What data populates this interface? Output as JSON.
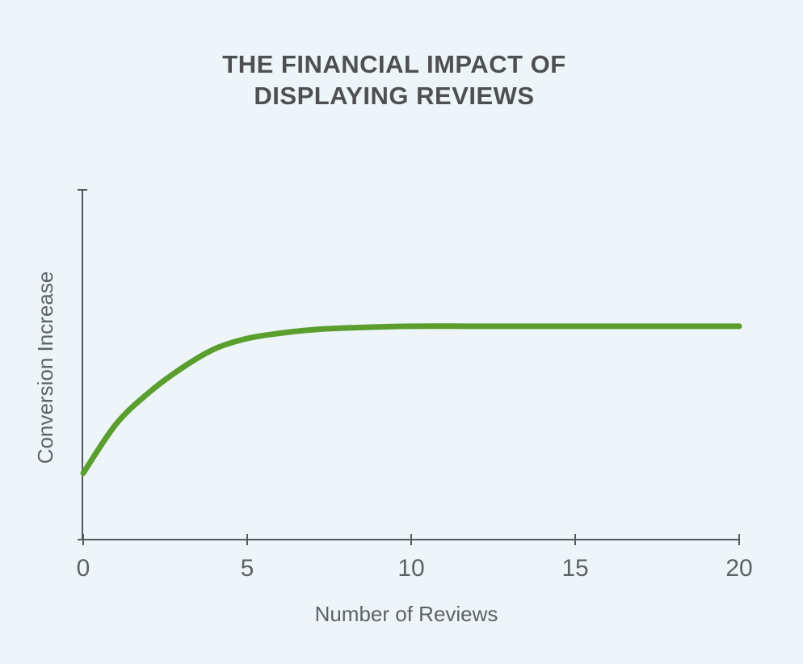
{
  "chart_data": {
    "type": "line",
    "title": [
      "THE FINANCIAL IMPACT OF",
      "DISPLAYING REVIEWS"
    ],
    "x_label": "Number of Reviews",
    "y_label": "Conversion Increase",
    "x": [
      0,
      1,
      2,
      3,
      4,
      5,
      6,
      7,
      8,
      10,
      12,
      15,
      20
    ],
    "series": [
      {
        "color": "#5a9f2e",
        "values": [
          19,
          33,
          42,
          49,
          54.5,
          57.5,
          59,
          60,
          60.5,
          61,
          61,
          61,
          61
        ]
      }
    ],
    "xlim": [
      0,
      20
    ],
    "xticks": [
      0,
      5,
      10,
      15,
      20
    ],
    "ylim": [
      0,
      100
    ]
  }
}
